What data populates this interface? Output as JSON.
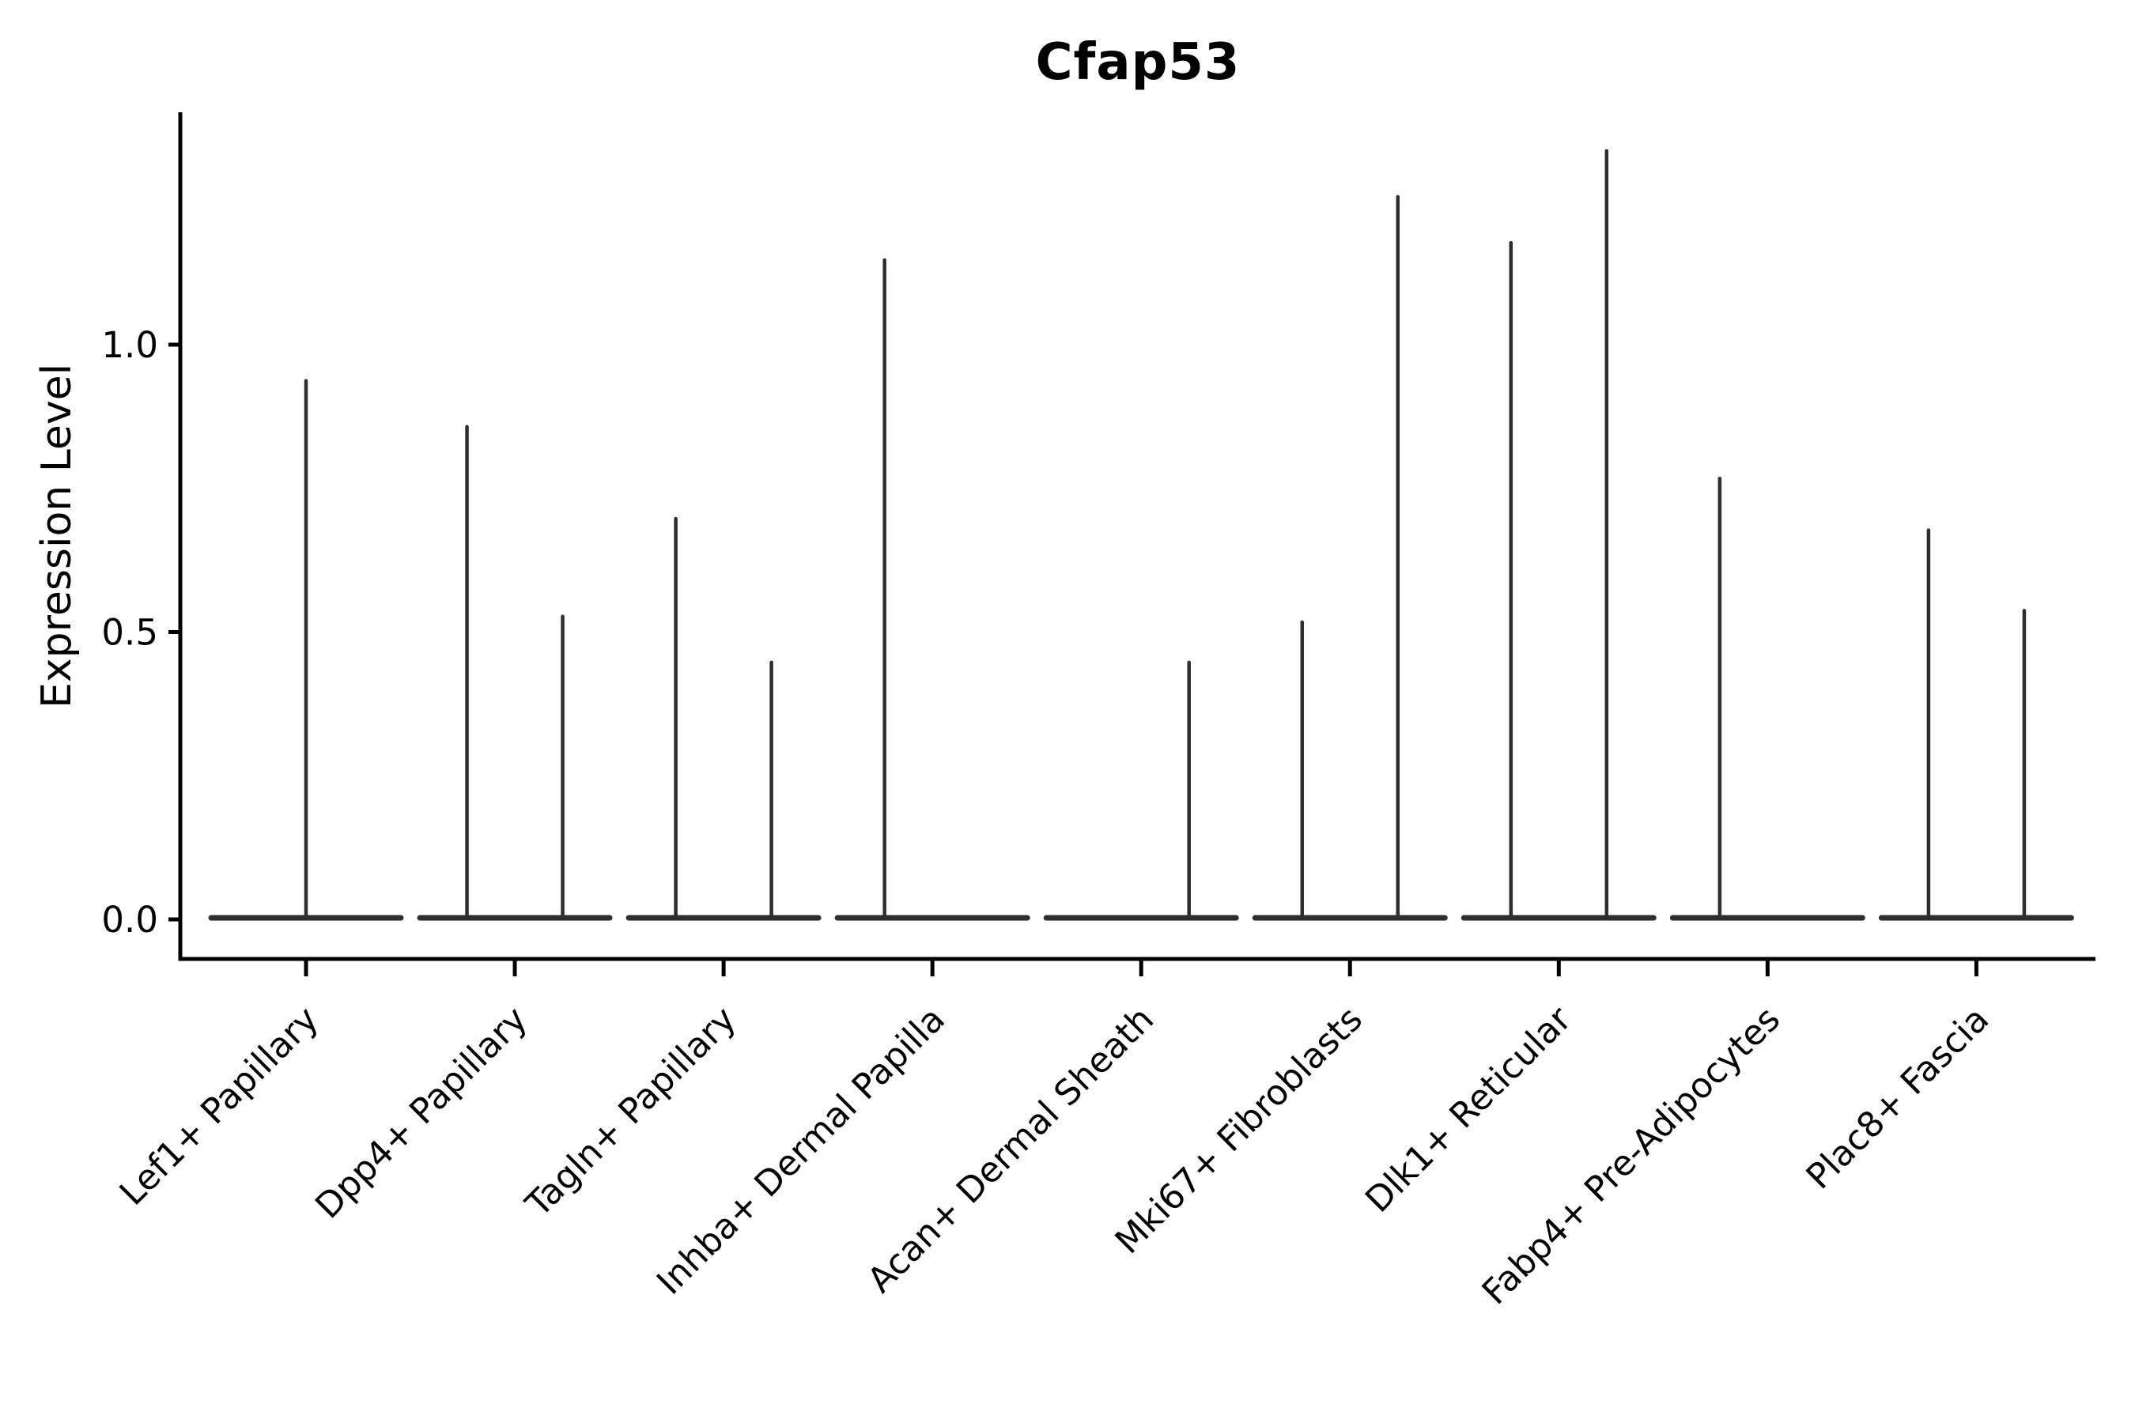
{
  "title": "Cfap53",
  "y_axis": {
    "label": "Expression Level",
    "tick_labels": [
      "0.0",
      "0.5",
      "1.0"
    ],
    "tick_values": [
      0.0,
      0.5,
      1.0
    ]
  },
  "chart_data": {
    "type": "violin",
    "title": "Cfap53",
    "xlabel": "",
    "ylabel": "Expression Level",
    "ylim": [
      -0.07,
      1.4
    ],
    "yticks": [
      0.0,
      0.5,
      1.0
    ],
    "grid": false,
    "legend": "none",
    "orientation": "vertical",
    "baseline_value": 0.0,
    "note": "Seurat-style violin plot: each violin collapses to a flat bar at expression 0 with thin vertical spike(s) reaching the maximum expression value; spikes sit at the center or are dodged left/right within each category.",
    "categories": [
      "Lef1+ Papillary",
      "Dpp4+ Papillary",
      "Tagln+ Papillary",
      "Inhba+ Dermal Papilla",
      "Acan+ Dermal Sheath",
      "Mki67+ Fibroblasts",
      "Dlk1+ Reticular",
      "Fabp4+ Pre-Adipocytes",
      "Plac8+ Fascia"
    ],
    "violins": [
      {
        "category": "Lef1+ Papillary",
        "spikes": [
          {
            "position": "center",
            "max": 0.94
          }
        ]
      },
      {
        "category": "Dpp4+ Papillary",
        "spikes": [
          {
            "position": "left",
            "max": 0.86
          },
          {
            "position": "right",
            "max": 0.53
          }
        ]
      },
      {
        "category": "Tagln+ Papillary",
        "spikes": [
          {
            "position": "left",
            "max": 0.7
          },
          {
            "position": "right",
            "max": 0.45
          }
        ]
      },
      {
        "category": "Inhba+ Dermal Papilla",
        "spikes": [
          {
            "position": "left",
            "max": 1.15
          }
        ]
      },
      {
        "category": "Acan+ Dermal Sheath",
        "spikes": [
          {
            "position": "right",
            "max": 0.45
          }
        ]
      },
      {
        "category": "Mki67+ Fibroblasts",
        "spikes": [
          {
            "position": "left",
            "max": 0.52
          },
          {
            "position": "right",
            "max": 1.26
          }
        ]
      },
      {
        "category": "Dlk1+ Reticular",
        "spikes": [
          {
            "position": "left",
            "max": 1.18
          },
          {
            "position": "right",
            "max": 1.34
          }
        ]
      },
      {
        "category": "Fabp4+ Pre-Adipocytes",
        "spikes": [
          {
            "position": "left",
            "max": 0.77
          }
        ]
      },
      {
        "category": "Plac8+ Fascia",
        "spikes": [
          {
            "position": "left",
            "max": 0.68
          },
          {
            "position": "right",
            "max": 0.54
          }
        ]
      }
    ]
  },
  "colors": {
    "background": "#ffffff",
    "axis": "#000000",
    "text": "#000000",
    "violin": "#2e2e2e"
  }
}
